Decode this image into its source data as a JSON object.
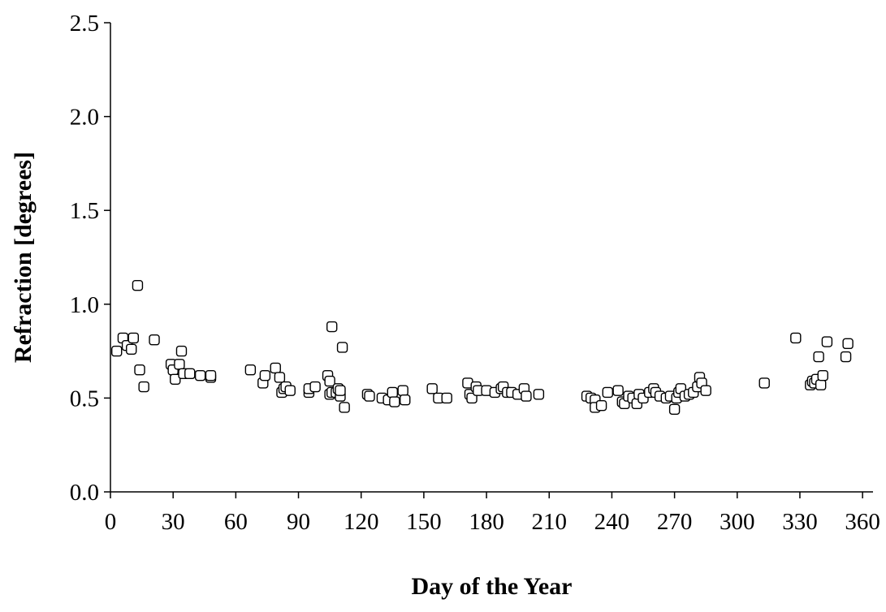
{
  "chart_data": {
    "type": "scatter",
    "title": "",
    "xlabel": "Day of the Year",
    "ylabel": "Refraction [degrees]",
    "xlim": [
      0,
      365
    ],
    "ylim": [
      0,
      2.5
    ],
    "x_ticks": [
      0,
      30,
      60,
      90,
      120,
      150,
      180,
      210,
      240,
      270,
      300,
      330,
      360
    ],
    "x_tick_labels": [
      "0",
      "30",
      "60",
      "90",
      "120",
      "150",
      "180",
      "210",
      "240",
      "270",
      "300",
      "330",
      "360"
    ],
    "y_ticks": [
      0,
      0.5,
      1.0,
      1.5,
      2.0,
      2.5
    ],
    "y_tick_labels": [
      "0.0",
      "0.5",
      "1.0",
      "1.5",
      "2.0",
      "2.5"
    ],
    "grid": false,
    "legend": "none",
    "marker": "open-square",
    "series": [
      {
        "x": [
          3,
          6,
          8,
          10,
          11,
          13,
          14,
          16,
          21,
          29,
          30,
          31,
          33,
          34,
          35,
          38,
          43,
          48,
          48,
          67,
          73,
          74,
          79,
          81,
          82,
          83,
          84,
          86,
          95,
          95,
          98,
          104,
          105,
          105,
          106,
          106,
          108,
          109,
          110,
          110,
          111,
          112,
          123,
          124,
          130,
          133,
          135,
          136,
          140,
          141,
          154,
          157,
          161,
          171,
          172,
          173,
          175,
          176,
          180,
          184,
          187,
          188,
          190,
          192,
          195,
          198,
          199,
          205,
          228,
          230,
          232,
          232,
          235,
          238,
          243,
          245,
          246,
          248,
          250,
          252,
          253,
          255,
          258,
          260,
          261,
          263,
          266,
          268,
          270,
          271,
          272,
          273,
          275,
          277,
          279,
          281,
          282,
          283,
          285,
          313,
          328,
          335,
          336,
          337,
          338,
          339,
          340,
          341,
          343,
          352,
          353
        ],
        "y": [
          0.75,
          0.82,
          0.78,
          0.76,
          0.82,
          1.1,
          0.65,
          0.56,
          0.81,
          0.68,
          0.65,
          0.6,
          0.68,
          0.75,
          0.63,
          0.63,
          0.62,
          0.61,
          0.62,
          0.65,
          0.58,
          0.62,
          0.66,
          0.61,
          0.53,
          0.55,
          0.56,
          0.54,
          0.53,
          0.55,
          0.56,
          0.62,
          0.52,
          0.59,
          0.88,
          0.53,
          0.53,
          0.55,
          0.51,
          0.54,
          0.77,
          0.45,
          0.52,
          0.51,
          0.5,
          0.49,
          0.53,
          0.48,
          0.54,
          0.49,
          0.55,
          0.5,
          0.5,
          0.58,
          0.52,
          0.5,
          0.56,
          0.54,
          0.54,
          0.53,
          0.55,
          0.56,
          0.53,
          0.53,
          0.52,
          0.55,
          0.51,
          0.52,
          0.51,
          0.5,
          0.49,
          0.45,
          0.46,
          0.53,
          0.54,
          0.48,
          0.47,
          0.51,
          0.5,
          0.47,
          0.52,
          0.5,
          0.53,
          0.55,
          0.53,
          0.51,
          0.5,
          0.51,
          0.44,
          0.5,
          0.53,
          0.55,
          0.51,
          0.52,
          0.53,
          0.56,
          0.61,
          0.58,
          0.54,
          0.58,
          0.82,
          0.57,
          0.59,
          0.58,
          0.6,
          0.72,
          0.57,
          0.62,
          0.8,
          0.72,
          0.79
        ]
      }
    ]
  }
}
